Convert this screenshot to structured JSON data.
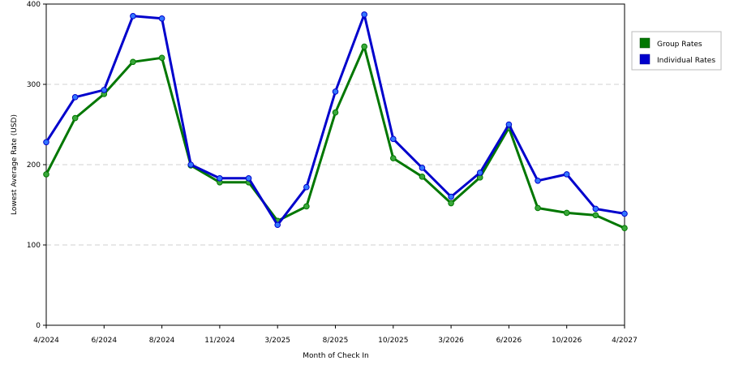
{
  "chart_data": {
    "type": "line",
    "xlabel": "Month of Check In",
    "ylabel": "Lowest Average Rate (USD)",
    "ylim": [
      0,
      400
    ],
    "yticks": [
      0,
      100,
      200,
      300,
      400
    ],
    "grid": "horizontal dashed",
    "legend_position": "right",
    "x_tick_labels": [
      "4/2024",
      "6/2024",
      "8/2024",
      "11/2024",
      "3/2025",
      "8/2025",
      "10/2025",
      "3/2026",
      "6/2026",
      "10/2026",
      "4/2027"
    ],
    "x_tick_point_index": [
      0,
      2,
      4,
      6,
      8,
      10,
      12,
      14,
      16,
      18,
      20
    ],
    "point_count": 21,
    "series": [
      {
        "name": "Group Rates",
        "color": "#007700",
        "marker_color": "#3aa83a",
        "values": [
          188,
          258,
          288,
          328,
          333,
          199,
          178,
          178,
          130,
          148,
          265,
          347,
          208,
          185,
          152,
          184,
          246,
          146,
          140,
          137,
          121
        ]
      },
      {
        "name": "Individual Rates",
        "color": "#0000cc",
        "marker_color": "#3377ff",
        "values": [
          228,
          284,
          293,
          385,
          382,
          200,
          183,
          183,
          125,
          172,
          291,
          387,
          232,
          196,
          160,
          190,
          250,
          180,
          188,
          145,
          139
        ]
      }
    ]
  }
}
